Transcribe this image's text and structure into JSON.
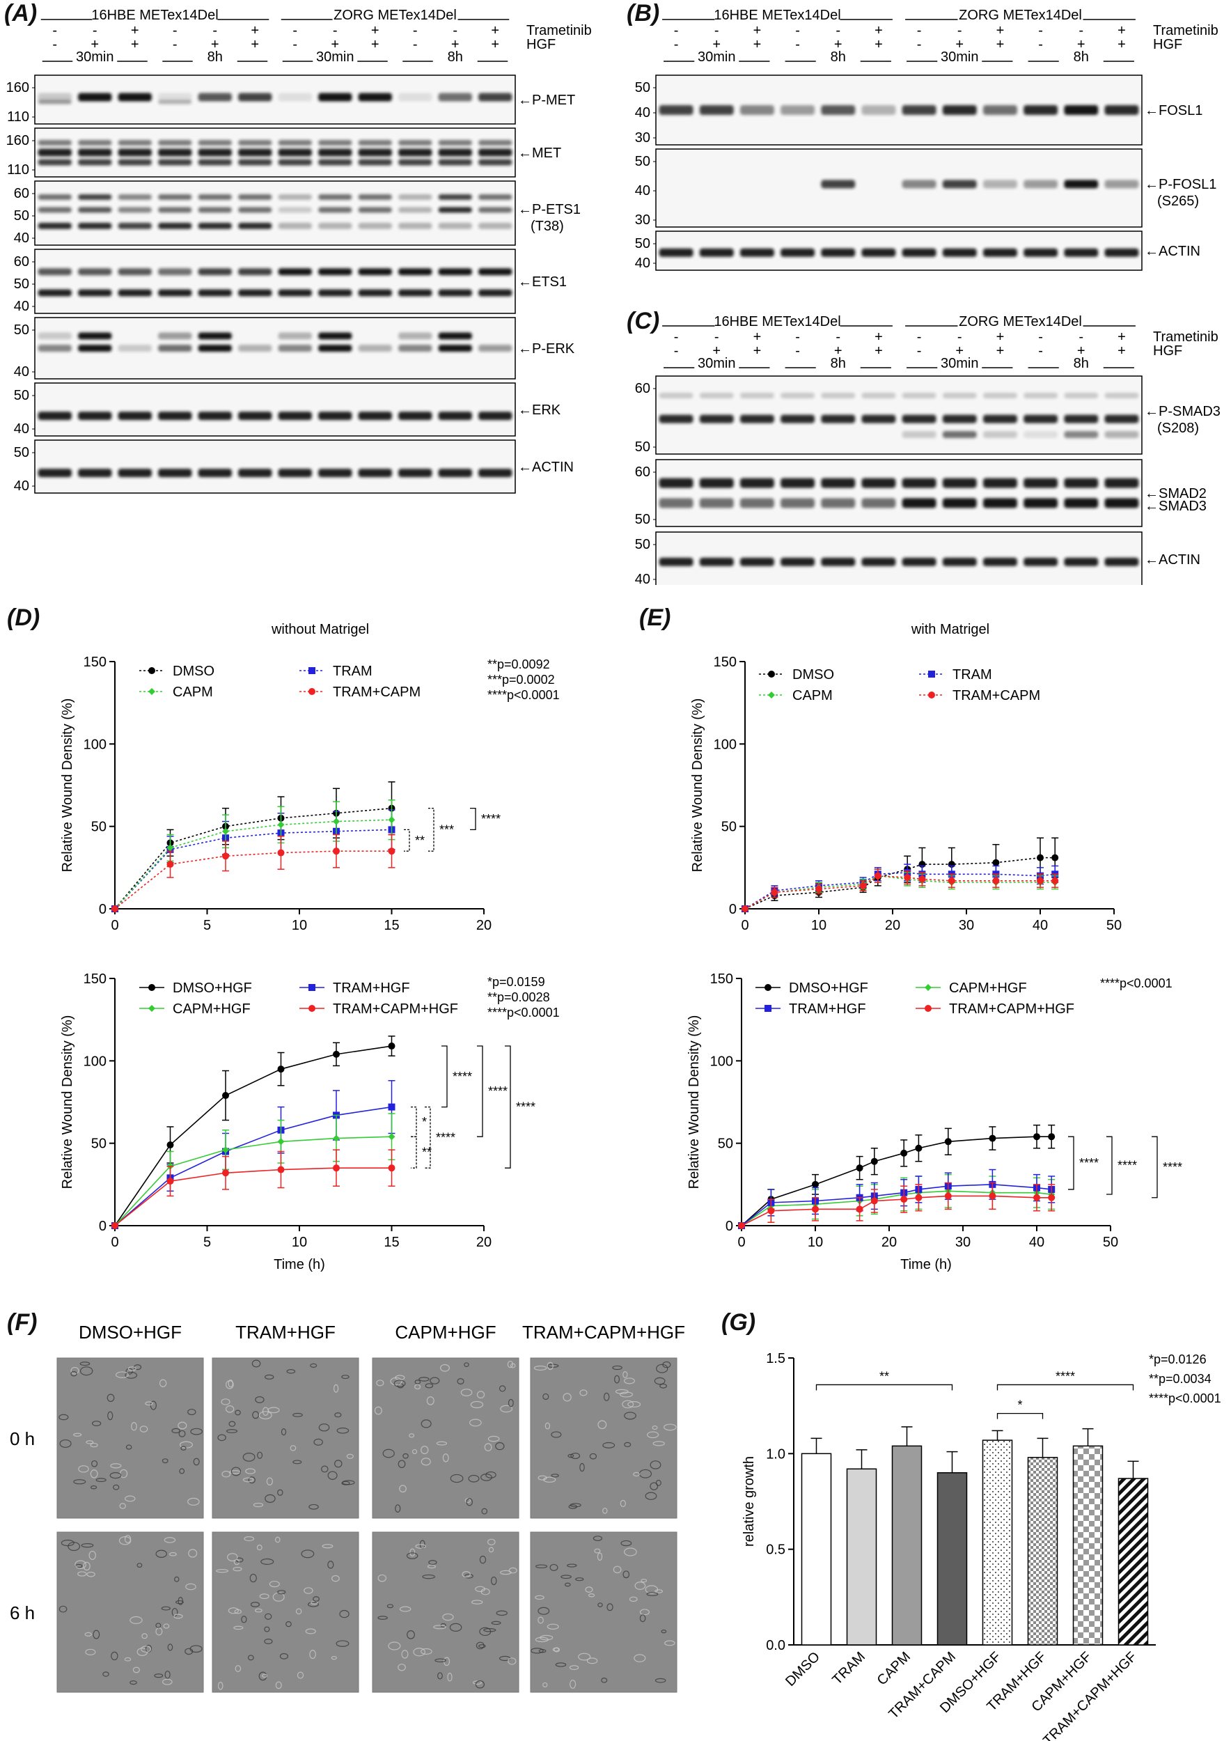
{
  "panels": {
    "A": "(A)",
    "B": "(B)",
    "C": "(C)",
    "D": "(D)",
    "E": "(E)",
    "F": "(F)",
    "G": "(G)"
  },
  "colors": {
    "dmso": "#000000",
    "capm": "#33cc33",
    "tram": "#2222dd",
    "combo": "#ee2222",
    "band": "#141414",
    "blotBg": "#f6f6f6",
    "cellBg": "#8a8a8a"
  },
  "blot_common": {
    "trametinib_label": "Trametinib",
    "hgf_label": "HGF",
    "tram_row": [
      "-",
      "-",
      "+",
      "-",
      "-",
      "+",
      "-",
      "-",
      "+",
      "-",
      "-",
      "+"
    ],
    "hgf_row": [
      "-",
      "+",
      "+",
      "-",
      "+",
      "+",
      "-",
      "+",
      "+",
      "-",
      "+",
      "+"
    ],
    "time_labels": [
      "30min",
      "8h",
      "30min",
      "8h"
    ],
    "groups": [
      "16HBE METex14Del",
      "ZORG METex14Del"
    ]
  },
  "blotA": {
    "strips": [
      {
        "label": "P-MET",
        "mw": [
          "160",
          "110"
        ],
        "sublabel": ""
      },
      {
        "label": "MET",
        "mw": [
          "160",
          "110"
        ],
        "sublabel": ""
      },
      {
        "label": "P-ETS1",
        "mw": [
          "60",
          "50",
          "40"
        ],
        "sublabel": "(T38)"
      },
      {
        "label": "ETS1",
        "mw": [
          "60",
          "50",
          "40"
        ],
        "sublabel": ""
      },
      {
        "label": "P-ERK",
        "mw": [
          "50",
          "40"
        ],
        "sublabel": ""
      },
      {
        "label": "ERK",
        "mw": [
          "50",
          "40"
        ],
        "sublabel": ""
      },
      {
        "label": "ACTIN",
        "mw": [
          "50",
          "40"
        ],
        "sublabel": ""
      }
    ]
  },
  "blotB": {
    "strips": [
      {
        "label": "FOSL1",
        "mw": [
          "50",
          "40",
          "30"
        ],
        "sublabel": ""
      },
      {
        "label": "P-FOSL1",
        "mw": [
          "50",
          "40",
          "30"
        ],
        "sublabel": "(S265)"
      },
      {
        "label": "ACTIN",
        "mw": [
          "50",
          "40"
        ],
        "sublabel": ""
      }
    ]
  },
  "blotC": {
    "strips": [
      {
        "label": "P-SMAD3",
        "mw": [
          "60",
          "50"
        ],
        "sublabel": "(S208)"
      },
      {
        "label": "SMAD2",
        "label2": "SMAD3",
        "mw": [
          "60",
          "50"
        ],
        "sublabel": ""
      },
      {
        "label": "ACTIN",
        "mw": [
          "50",
          "40"
        ],
        "sublabel": ""
      }
    ]
  },
  "chart_data": [
    {
      "id": "D-top",
      "type": "line",
      "title": "without Matrigel",
      "xlabel": "",
      "ylabel": "Relative Wound Density (%)",
      "xlim": [
        0,
        20
      ],
      "ylim": [
        0,
        150
      ],
      "xticks": [
        0,
        5,
        10,
        15,
        20
      ],
      "yticks": [
        0,
        50,
        100,
        150
      ],
      "x": [
        0,
        3,
        6,
        9,
        12,
        15
      ],
      "series": [
        {
          "name": "DMSO",
          "color": "#000000",
          "marker": "circle",
          "dashed": true,
          "values": [
            0,
            40,
            50,
            55,
            58,
            61
          ],
          "err": [
            0,
            8,
            11,
            13,
            15,
            16
          ]
        },
        {
          "name": "TRAM",
          "color": "#2222dd",
          "marker": "square",
          "dashed": true,
          "values": [
            0,
            36,
            43,
            46,
            47,
            48
          ],
          "err": [
            0,
            8,
            10,
            12,
            12,
            12
          ]
        },
        {
          "name": "CAPM",
          "color": "#33cc33",
          "marker": "diamond",
          "dashed": true,
          "values": [
            0,
            37,
            47,
            51,
            53,
            54
          ],
          "err": [
            0,
            8,
            10,
            11,
            12,
            12
          ]
        },
        {
          "name": "TRAM+CAPM",
          "color": "#ee2222",
          "marker": "circle",
          "dashed": true,
          "values": [
            0,
            27,
            32,
            34,
            35,
            35
          ],
          "err": [
            0,
            8,
            9,
            10,
            10,
            10
          ]
        }
      ],
      "pvalues": [
        "**p=0.0092",
        "***p=0.0002",
        "****p<0.0001"
      ],
      "brackets": [
        "**",
        "***",
        "****"
      ]
    },
    {
      "id": "D-bottom",
      "type": "line",
      "title": "",
      "xlabel": "Time (h)",
      "ylabel": "Relative Wound Density (%)",
      "xlim": [
        0,
        20
      ],
      "ylim": [
        0,
        150
      ],
      "xticks": [
        0,
        5,
        10,
        15,
        20
      ],
      "yticks": [
        0,
        50,
        100,
        150
      ],
      "x": [
        0,
        3,
        6,
        9,
        12,
        15
      ],
      "series": [
        {
          "name": "DMSO+HGF",
          "color": "#000000",
          "marker": "circle",
          "dashed": false,
          "values": [
            0,
            49,
            79,
            95,
            104,
            109
          ],
          "err": [
            0,
            11,
            15,
            10,
            7,
            6
          ]
        },
        {
          "name": "TRAM+HGF",
          "color": "#2222dd",
          "marker": "square",
          "dashed": false,
          "values": [
            0,
            29,
            45,
            58,
            67,
            72
          ],
          "err": [
            0,
            8,
            11,
            14,
            15,
            16
          ]
        },
        {
          "name": "CAPM+HGF",
          "color": "#33cc33",
          "marker": "diamond",
          "dashed": false,
          "values": [
            0,
            36,
            46,
            51,
            53,
            54
          ],
          "err": [
            0,
            9,
            12,
            13,
            14,
            14
          ]
        },
        {
          "name": "TRAM+CAPM+HGF",
          "color": "#ee2222",
          "marker": "circle",
          "dashed": false,
          "values": [
            0,
            27,
            32,
            34,
            35,
            35
          ],
          "err": [
            0,
            9,
            10,
            11,
            11,
            11
          ]
        }
      ],
      "pvalues": [
        "*p=0.0159",
        "**p=0.0028",
        "****p<0.0001"
      ],
      "brackets": [
        "****",
        "****",
        "****",
        "*",
        "****",
        "**"
      ]
    },
    {
      "id": "E-top",
      "type": "line",
      "title": "with Matrigel",
      "xlabel": "",
      "ylabel": "Relative Wound Density (%)",
      "xlim": [
        0,
        50
      ],
      "ylim": [
        0,
        150
      ],
      "xticks": [
        0,
        10,
        20,
        30,
        40,
        50
      ],
      "yticks": [
        0,
        50,
        100,
        150
      ],
      "x": [
        0,
        4,
        10,
        16,
        18,
        22,
        24,
        28,
        34,
        40,
        42
      ],
      "series": [
        {
          "name": "DMSO",
          "color": "#000000",
          "marker": "circle",
          "dashed": true,
          "values": [
            0,
            8,
            10,
            13,
            19,
            24,
            27,
            27,
            28,
            31,
            31
          ],
          "err": [
            0,
            3,
            3,
            3,
            5,
            8,
            10,
            10,
            11,
            12,
            12
          ]
        },
        {
          "name": "TRAM",
          "color": "#2222dd",
          "marker": "square",
          "dashed": true,
          "values": [
            0,
            11,
            14,
            16,
            21,
            22,
            21,
            21,
            21,
            20,
            21
          ],
          "err": [
            0,
            3,
            3,
            3,
            4,
            5,
            5,
            5,
            5,
            5,
            5
          ]
        },
        {
          "name": "CAPM",
          "color": "#33cc33",
          "marker": "diamond",
          "dashed": true,
          "values": [
            0,
            10,
            13,
            15,
            20,
            18,
            17,
            16,
            16,
            16,
            16
          ],
          "err": [
            0,
            3,
            3,
            3,
            4,
            4,
            4,
            4,
            4,
            4,
            4
          ]
        },
        {
          "name": "TRAM+CAPM",
          "color": "#ee2222",
          "marker": "circle",
          "dashed": true,
          "values": [
            0,
            10,
            12,
            14,
            20,
            19,
            18,
            17,
            17,
            17,
            17
          ],
          "err": [
            0,
            3,
            3,
            3,
            4,
            4,
            4,
            4,
            4,
            4,
            4
          ]
        }
      ],
      "pvalues": [],
      "brackets": []
    },
    {
      "id": "E-bottom",
      "type": "line",
      "title": "",
      "xlabel": "Time (h)",
      "ylabel": "Relative Wound Density (%)",
      "xlim": [
        0,
        50
      ],
      "ylim": [
        0,
        150
      ],
      "xticks": [
        0,
        10,
        20,
        30,
        40,
        50
      ],
      "yticks": [
        0,
        50,
        100,
        150
      ],
      "x": [
        0,
        4,
        10,
        16,
        18,
        22,
        24,
        28,
        34,
        40,
        42
      ],
      "series": [
        {
          "name": "DMSO+HGF",
          "color": "#000000",
          "marker": "circle",
          "dashed": false,
          "values": [
            0,
            16,
            25,
            35,
            39,
            44,
            47,
            51,
            53,
            54,
            54
          ],
          "err": [
            0,
            6,
            6,
            7,
            8,
            8,
            8,
            8,
            7,
            7,
            7
          ]
        },
        {
          "name": "CAPM+HGF",
          "color": "#33cc33",
          "marker": "diamond",
          "dashed": false,
          "values": [
            0,
            12,
            13,
            15,
            16,
            19,
            20,
            21,
            20,
            20,
            19
          ],
          "err": [
            0,
            10,
            9,
            9,
            9,
            10,
            10,
            10,
            10,
            9,
            9
          ]
        },
        {
          "name": "TRAM+HGF",
          "color": "#2222dd",
          "marker": "square",
          "dashed": false,
          "values": [
            0,
            14,
            15,
            17,
            18,
            20,
            22,
            24,
            25,
            23,
            22
          ],
          "err": [
            0,
            8,
            8,
            8,
            8,
            8,
            8,
            8,
            9,
            8,
            8
          ]
        },
        {
          "name": "TRAM+CAPM+HGF",
          "color": "#ee2222",
          "marker": "circle",
          "dashed": false,
          "values": [
            0,
            9,
            10,
            10,
            15,
            16,
            17,
            18,
            18,
            17,
            17
          ],
          "err": [
            0,
            7,
            7,
            7,
            7,
            8,
            8,
            8,
            8,
            8,
            8
          ]
        }
      ],
      "pvalues": [
        "****p<0.0001"
      ],
      "brackets": [
        "****",
        "****",
        "****"
      ]
    },
    {
      "id": "G",
      "type": "bar",
      "title": "",
      "xlabel": "",
      "ylabel": "relative growth",
      "ylim": [
        0,
        1.5
      ],
      "yticks": [
        "0.0",
        "0.5",
        "1.0",
        "1.5"
      ],
      "categories": [
        "DMSO",
        "TRAM",
        "CAPM",
        "TRAM+CAPM",
        "DMSO+HGF",
        "TRAM+HGF",
        "CAPM+HGF",
        "TRAM+CAPM+HGF"
      ],
      "values": [
        1.0,
        0.92,
        1.04,
        0.9,
        1.07,
        0.98,
        1.04,
        0.87
      ],
      "err": [
        0.08,
        0.1,
        0.1,
        0.11,
        0.05,
        0.1,
        0.09,
        0.09
      ],
      "fills": [
        "white",
        "light",
        "mid",
        "dark",
        "dots",
        "check-small",
        "check",
        "hatch"
      ],
      "pvalues": [
        "*p=0.0126",
        "**p=0.0034",
        "****p<0.0001"
      ],
      "brackets": [
        "**",
        "****",
        "*"
      ]
    }
  ],
  "panelF": {
    "columns": [
      "DMSO+HGF",
      "TRAM+HGF",
      "CAPM+HGF",
      "TRAM+CAPM+HGF"
    ],
    "rows": [
      "0 h",
      "6 h"
    ]
  }
}
